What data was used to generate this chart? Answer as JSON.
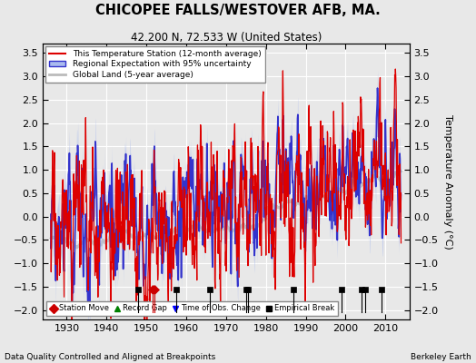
{
  "title": "CHICOPEE FALLS/WESTOVER AFB, MA.",
  "subtitle": "42.200 N, 72.533 W (United States)",
  "ylabel": "Temperature Anomaly (°C)",
  "xlabel_bottom": "Data Quality Controlled and Aligned at Breakpoints",
  "credit": "Berkeley Earth",
  "ylim": [
    -2.2,
    3.7
  ],
  "xlim": [
    1924,
    2016
  ],
  "yticks": [
    -2,
    -1.5,
    -1,
    -0.5,
    0,
    0.5,
    1,
    1.5,
    2,
    2.5,
    3,
    3.5
  ],
  "xticks": [
    1930,
    1940,
    1950,
    1960,
    1970,
    1980,
    1990,
    2000,
    2010
  ],
  "background_color": "#e8e8e8",
  "plot_bg_color": "#e8e8e8",
  "station_color": "#dd0000",
  "regional_color": "#3333cc",
  "regional_fill": "#aabbee",
  "global_color": "#bbbbbb",
  "legend_items": [
    "This Temperature Station (12-month average)",
    "Regional Expectation with 95% uncertainty",
    "Global Land (5-year average)"
  ],
  "marker_events": {
    "station_move": [
      1951.6,
      1952.1
    ],
    "record_gap": [],
    "time_of_obs": [],
    "empirical_break": [
      1948.0,
      1957.5,
      1966.0,
      1975.0,
      1975.5,
      1987.0,
      1999.0,
      2004.0,
      2005.0,
      2009.0
    ]
  },
  "seed": 17
}
